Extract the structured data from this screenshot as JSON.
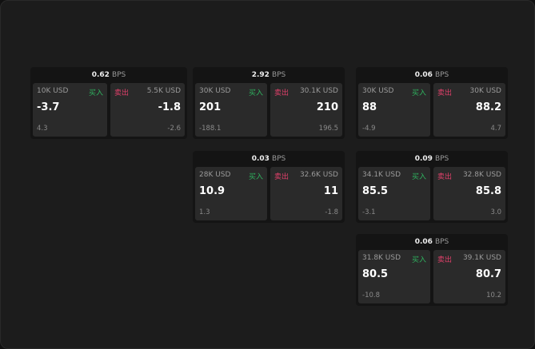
{
  "unit": "BPS",
  "buy_label": "买入",
  "sell_label": "卖出",
  "colors": {
    "buy": "#2fb35f",
    "sell": "#e0406a"
  },
  "cards": [
    {
      "spread": "0.62",
      "bid": {
        "size": "10K USD",
        "price": "-3.7",
        "change": "4.3"
      },
      "ask": {
        "size": "5.5K USD",
        "price": "-1.8",
        "change": "-2.6"
      }
    },
    {
      "spread": "2.92",
      "bid": {
        "size": "30K USD",
        "price": "201",
        "change": "-188.1"
      },
      "ask": {
        "size": "30.1K USD",
        "price": "210",
        "change": "196.5"
      }
    },
    {
      "spread": "0.06",
      "bid": {
        "size": "30K USD",
        "price": "88",
        "change": "-4.9"
      },
      "ask": {
        "size": "30K USD",
        "price": "88.2",
        "change": "4.7"
      }
    },
    {
      "spread": "0.03",
      "bid": {
        "size": "28K USD",
        "price": "10.9",
        "change": "1.3"
      },
      "ask": {
        "size": "32.6K USD",
        "price": "11",
        "change": "-1.8"
      }
    },
    {
      "spread": "0.09",
      "bid": {
        "size": "34.1K USD",
        "price": "85.5",
        "change": "-3.1"
      },
      "ask": {
        "size": "32.8K USD",
        "price": "85.8",
        "change": "3.0"
      }
    },
    {
      "spread": "0.06",
      "bid": {
        "size": "31.8K USD",
        "price": "80.5",
        "change": "-10.8"
      },
      "ask": {
        "size": "39.1K USD",
        "price": "80.7",
        "change": "10.2"
      }
    }
  ]
}
